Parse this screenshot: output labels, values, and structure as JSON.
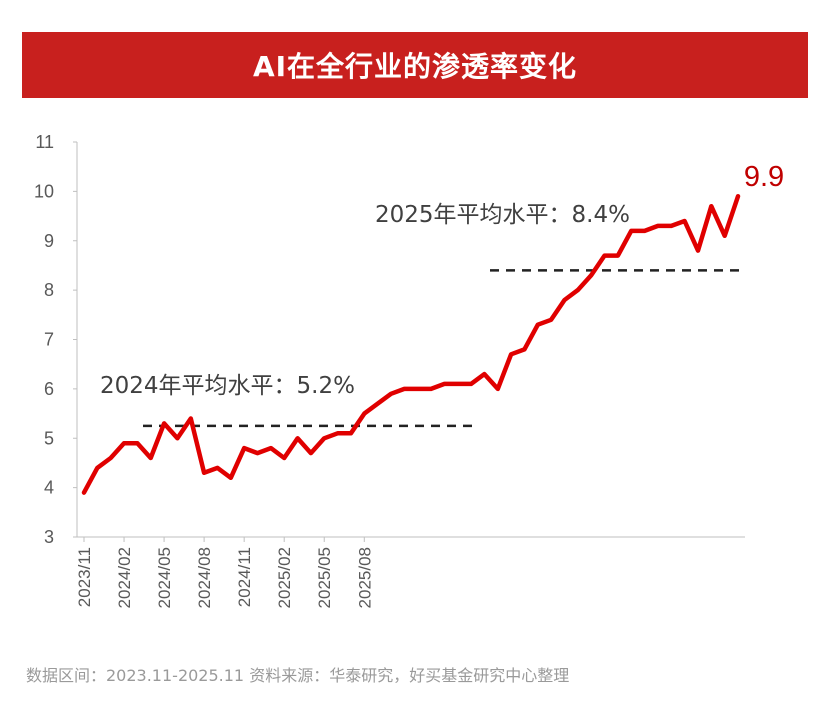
{
  "chart_data": {
    "type": "line",
    "title": "AI在全行业的渗透率变化",
    "ylim": [
      3,
      11
    ],
    "yticks": [
      3,
      4,
      5,
      6,
      7,
      8,
      9,
      10,
      11
    ],
    "xticks": [
      "2023/11",
      "2024/02",
      "2024/05",
      "2024/08",
      "2024/11",
      "2025/02",
      "2025/05",
      "2025/08"
    ],
    "series": [
      {
        "values": [
          3.9,
          4.4,
          4.6,
          4.9,
          4.9,
          4.6,
          5.3,
          5.0,
          5.4,
          4.3,
          4.4,
          4.2,
          4.8,
          4.7,
          4.8,
          4.6,
          5.0,
          4.7,
          5.0,
          5.1,
          5.1,
          5.5,
          5.7,
          5.9,
          6.0,
          6.0,
          6.0,
          6.1,
          6.1,
          6.1,
          6.3,
          6.0,
          6.7,
          6.8,
          7.3,
          7.4,
          7.8,
          8.0,
          8.3,
          8.7,
          8.7,
          9.2,
          9.2,
          9.3,
          9.3,
          9.4,
          8.8,
          9.7,
          9.1,
          9.9
        ],
        "color": "#e00000"
      }
    ],
    "end_label": "9.9",
    "annotations": [
      {
        "text": "2024年平均水平：5.2%",
        "value": 5.25
      },
      {
        "text": "2025年平均水平：8.4%",
        "value": 8.4
      }
    ]
  },
  "source_text": "数据区间：2023.11-2025.11 资料来源：华泰研究，好买基金研究中心整理"
}
